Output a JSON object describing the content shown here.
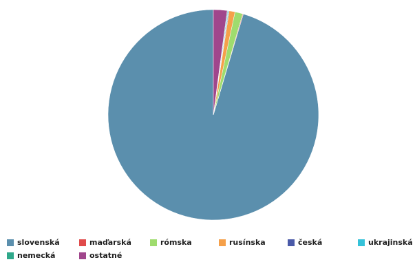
{
  "chart_data": {
    "type": "pie",
    "title": "",
    "series": [
      {
        "label": "slovenská",
        "value": 95.4,
        "color": "#5b8fad"
      },
      {
        "label": "maďarská",
        "value": 0.1,
        "color": "#e04b4b"
      },
      {
        "label": "rómska",
        "value": 1.2,
        "color": "#9fdc6e"
      },
      {
        "label": "rusínska",
        "value": 0.9,
        "color": "#f5a04a"
      },
      {
        "label": "česká",
        "value": 0.1,
        "color": "#4a5aa8"
      },
      {
        "label": "ukrajinská",
        "value": 0.1,
        "color": "#35c2d9"
      },
      {
        "label": "nemecká",
        "value": 0.1,
        "color": "#2fa88a"
      },
      {
        "label": "ostatné",
        "value": 2.1,
        "color": "#a0468c"
      }
    ],
    "legend_position": "bottom"
  }
}
